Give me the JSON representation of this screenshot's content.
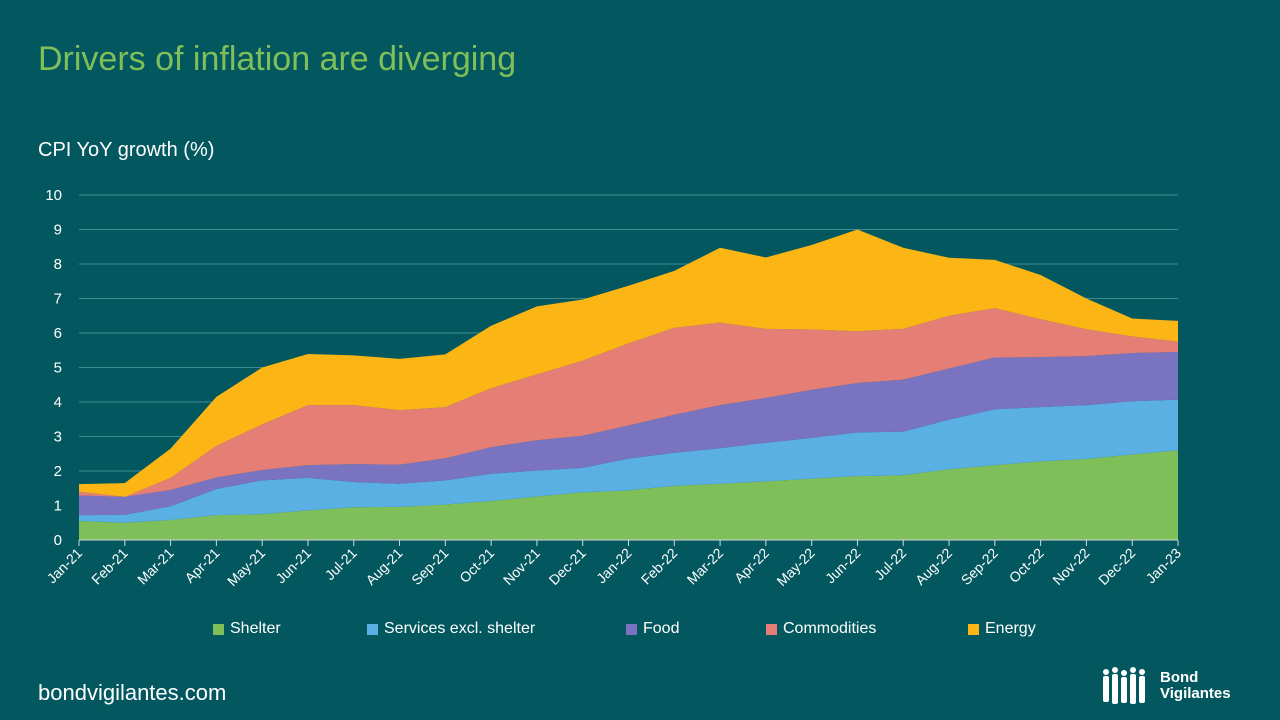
{
  "title": "Drivers of inflation are diverging",
  "footer": "bondvigilantes.com",
  "logo": {
    "line1": "Bond",
    "line2": "Vigilantes"
  },
  "chart_data": {
    "type": "area",
    "stacked": true,
    "title": "Drivers of inflation are diverging",
    "ylabel": "CPI YoY growth (%)",
    "xlabel": "",
    "ylim": [
      0,
      10
    ],
    "yticks": [
      0,
      1,
      2,
      3,
      4,
      5,
      6,
      7,
      8,
      9,
      10
    ],
    "grid": true,
    "legend_position": "bottom",
    "categories": [
      "Jan-21",
      "Feb-21",
      "Mar-21",
      "Apr-21",
      "May-21",
      "Jun-21",
      "Jul-21",
      "Aug-21",
      "Sep-21",
      "Oct-21",
      "Nov-21",
      "Dec-21",
      "Jan-22",
      "Feb-22",
      "Mar-22",
      "Apr-22",
      "May-22",
      "Jun-22",
      "Jul-22",
      "Aug-22",
      "Sep-22",
      "Oct-22",
      "Nov-22",
      "Dec-22",
      "Jan-23"
    ],
    "series": [
      {
        "name": "Shelter",
        "color": "#7fbf5a",
        "values": [
          0.55,
          0.5,
          0.58,
          0.72,
          0.75,
          0.86,
          0.95,
          0.96,
          1.03,
          1.13,
          1.26,
          1.38,
          1.44,
          1.57,
          1.63,
          1.7,
          1.78,
          1.85,
          1.88,
          2.05,
          2.17,
          2.28,
          2.35,
          2.48,
          2.6
        ]
      },
      {
        "name": "Services excl. shelter",
        "color": "#5aafe3",
        "values": [
          0.17,
          0.23,
          0.4,
          0.76,
          0.98,
          0.94,
          0.73,
          0.67,
          0.7,
          0.79,
          0.75,
          0.71,
          0.92,
          0.96,
          1.03,
          1.12,
          1.18,
          1.27,
          1.26,
          1.44,
          1.62,
          1.57,
          1.56,
          1.54,
          1.47
        ]
      },
      {
        "name": "Food",
        "color": "#7a74c0",
        "values": [
          0.57,
          0.52,
          0.47,
          0.33,
          0.3,
          0.37,
          0.52,
          0.55,
          0.64,
          0.77,
          0.88,
          0.93,
          0.96,
          1.1,
          1.25,
          1.3,
          1.39,
          1.43,
          1.51,
          1.48,
          1.5,
          1.45,
          1.42,
          1.4,
          1.38
        ]
      },
      {
        "name": "Commodities",
        "color": "#e57f76",
        "values": [
          0.11,
          0.0,
          0.35,
          0.92,
          1.32,
          1.74,
          1.71,
          1.58,
          1.48,
          1.71,
          1.91,
          2.18,
          2.38,
          2.52,
          2.39,
          2.0,
          1.75,
          1.5,
          1.47,
          1.53,
          1.43,
          1.1,
          0.78,
          0.48,
          0.3
        ]
      },
      {
        "name": "Energy",
        "color": "#fbb615",
        "values": [
          0.22,
          0.4,
          0.85,
          1.42,
          1.65,
          1.48,
          1.44,
          1.49,
          1.53,
          1.81,
          1.97,
          1.77,
          1.67,
          1.65,
          2.17,
          2.07,
          2.45,
          2.95,
          2.35,
          1.68,
          1.4,
          1.28,
          0.89,
          0.52,
          0.6
        ]
      }
    ]
  }
}
